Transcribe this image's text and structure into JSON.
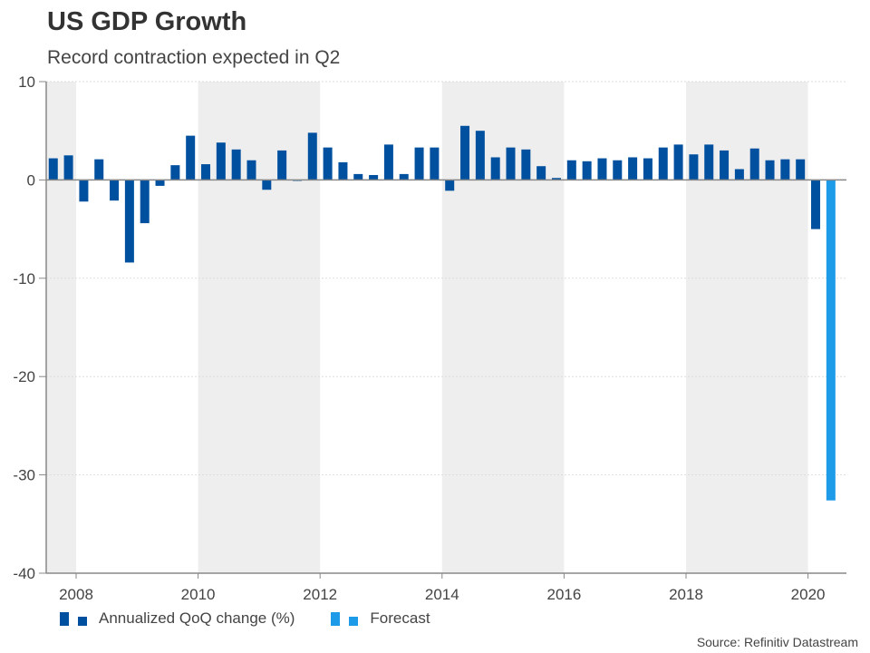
{
  "chart_data": {
    "type": "bar",
    "title": "US GDP Growth",
    "subtitle": "Record contraction expected in Q2",
    "source": "Source: Refinitiv Datastream",
    "ylim": [
      -40,
      10
    ],
    "yticks": [
      10,
      0,
      -10,
      -20,
      -30,
      -40
    ],
    "xticks": [
      "2008",
      "2010",
      "2012",
      "2014",
      "2016",
      "2018",
      "2020"
    ],
    "grid": true,
    "legend_placement": "bottom-left",
    "categories": [
      "2007Q3",
      "2007Q4",
      "2008Q1",
      "2008Q2",
      "2008Q3",
      "2008Q4",
      "2009Q1",
      "2009Q2",
      "2009Q3",
      "2009Q4",
      "2010Q1",
      "2010Q2",
      "2010Q3",
      "2010Q4",
      "2011Q1",
      "2011Q2",
      "2011Q3",
      "2011Q4",
      "2012Q1",
      "2012Q2",
      "2012Q3",
      "2012Q4",
      "2013Q1",
      "2013Q2",
      "2013Q3",
      "2013Q4",
      "2014Q1",
      "2014Q2",
      "2014Q3",
      "2014Q4",
      "2015Q1",
      "2015Q2",
      "2015Q3",
      "2015Q4",
      "2016Q1",
      "2016Q2",
      "2016Q3",
      "2016Q4",
      "2017Q1",
      "2017Q2",
      "2017Q3",
      "2017Q4",
      "2018Q1",
      "2018Q2",
      "2018Q3",
      "2018Q4",
      "2019Q1",
      "2019Q2",
      "2019Q3",
      "2019Q4",
      "2020Q1",
      "2020Q2"
    ],
    "series": [
      {
        "name": "Annualized QoQ change (%)",
        "color": "#0050a0",
        "values": [
          2.2,
          2.5,
          -2.2,
          2.1,
          -2.1,
          -8.4,
          -4.4,
          -0.6,
          1.5,
          4.5,
          1.6,
          3.8,
          3.1,
          2.0,
          -1.0,
          3.0,
          -0.1,
          4.8,
          3.3,
          1.8,
          0.6,
          0.5,
          3.6,
          0.6,
          3.3,
          3.3,
          -1.1,
          5.5,
          5.0,
          2.3,
          3.3,
          3.1,
          1.4,
          0.2,
          2.0,
          1.9,
          2.2,
          2.0,
          2.3,
          2.2,
          3.3,
          3.6,
          2.6,
          3.6,
          3.0,
          1.1,
          3.2,
          2.0,
          2.1,
          2.1,
          -5.0,
          null
        ]
      },
      {
        "name": "Forecast",
        "color": "#1e9be8",
        "values": [
          null,
          null,
          null,
          null,
          null,
          null,
          null,
          null,
          null,
          null,
          null,
          null,
          null,
          null,
          null,
          null,
          null,
          null,
          null,
          null,
          null,
          null,
          null,
          null,
          null,
          null,
          null,
          null,
          null,
          null,
          null,
          null,
          null,
          null,
          null,
          null,
          null,
          null,
          null,
          null,
          null,
          null,
          null,
          null,
          null,
          null,
          null,
          null,
          null,
          null,
          null,
          -32.6
        ]
      }
    ]
  }
}
